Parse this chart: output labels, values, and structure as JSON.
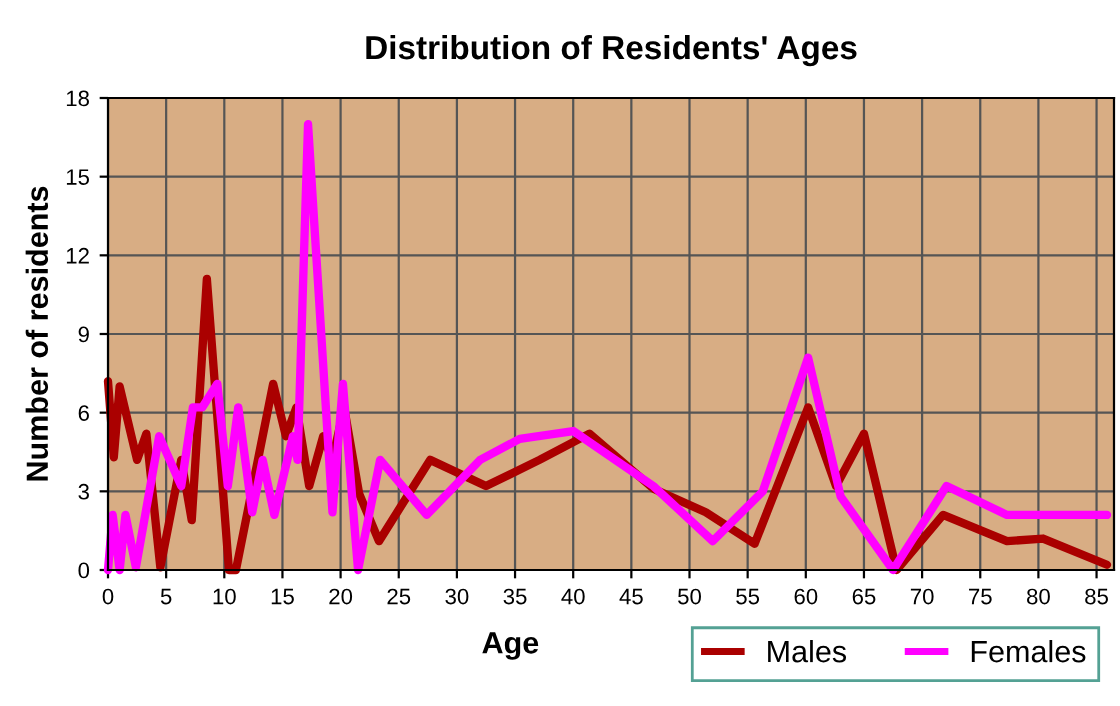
{
  "chart_data": {
    "type": "line",
    "title": "Distribution of Residents' Ages",
    "xlabel": "Age",
    "ylabel": "Number of residents",
    "xlim": [
      0,
      86.5
    ],
    "xticks": [
      0,
      5,
      10,
      15,
      20,
      25,
      30,
      35,
      40,
      45,
      50,
      55,
      60,
      65,
      70,
      75,
      80,
      85
    ],
    "ylim": [
      0,
      18
    ],
    "yticks": [
      0,
      3,
      6,
      9,
      12,
      15,
      18
    ],
    "grid": true,
    "legend": "bottom right",
    "line_style": "solid",
    "marker": "none",
    "series": [
      {
        "name": "Males",
        "color": "#aa0000",
        "x": [
          0,
          0.5,
          1,
          2.5,
          3.3,
          4.5,
          6.3,
          7.2,
          8.5,
          10.4,
          11,
          14.2,
          15.3,
          16.2,
          17.3,
          18.5,
          19.3,
          20.3,
          21.6,
          23.3,
          27.7,
          32.5,
          37.1,
          41.4,
          46.9,
          51.4,
          55.6,
          60.2,
          62.6,
          65,
          67.8,
          71.8,
          77.3,
          80.4,
          85.9
        ],
        "values": [
          7.2,
          4.3,
          7,
          4.2,
          5.2,
          0.1,
          4.2,
          1.9,
          11.1,
          0,
          0,
          7.1,
          5.1,
          6.2,
          3.2,
          5.1,
          4.2,
          6.2,
          2.9,
          1.1,
          4.2,
          3.2,
          4.2,
          5.2,
          3.1,
          2.2,
          1,
          6.2,
          3.2,
          5.2,
          0,
          2.1,
          1.1,
          1.2,
          0.2
        ]
      },
      {
        "name": "Females",
        "color": "#ff00ff",
        "x": [
          0,
          0.4,
          1,
          1.5,
          2.4,
          4.4,
          6.3,
          7.3,
          8.1,
          9.4,
          10.3,
          11.2,
          12.4,
          13.3,
          14.3,
          15.9,
          16.3,
          17.2,
          19.3,
          20.2,
          21.5,
          23.4,
          27.4,
          32,
          35.4,
          40,
          46.9,
          52,
          56.3,
          60.2,
          63,
          67.5,
          72.1,
          77.3,
          85.9
        ],
        "values": [
          0,
          2.1,
          0,
          2.1,
          0.1,
          5.1,
          3.2,
          6.2,
          6.2,
          7.1,
          3.2,
          6.2,
          2.2,
          4.2,
          2.1,
          5.1,
          4.2,
          17,
          2.2,
          7.1,
          0,
          4.2,
          2.1,
          4.2,
          5,
          5.3,
          3.2,
          1.1,
          3,
          8.1,
          2.8,
          0,
          3.2,
          2.1,
          2.1
        ]
      }
    ]
  }
}
